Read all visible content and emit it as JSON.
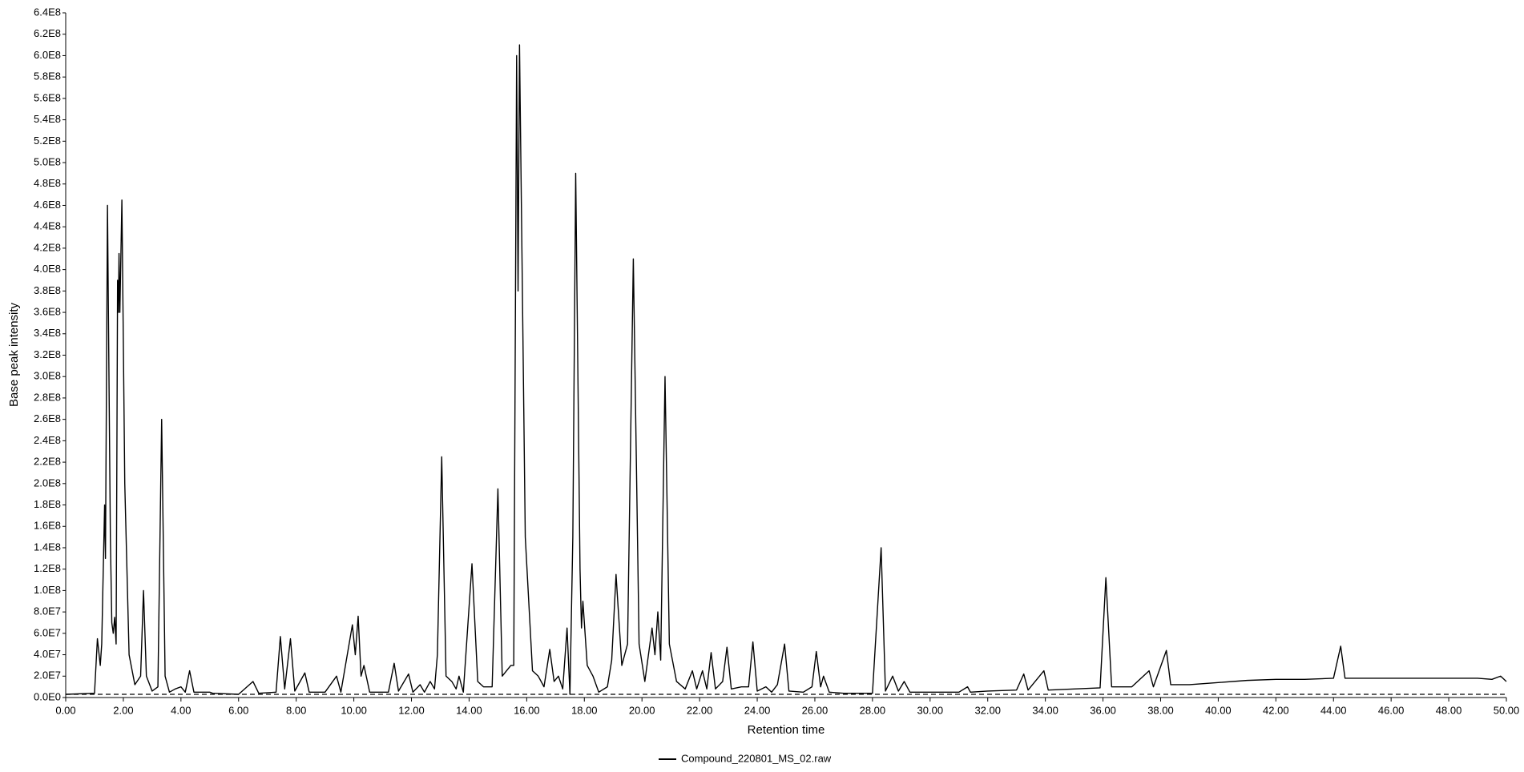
{
  "chart_data": {
    "type": "line",
    "xlabel": "Retention time",
    "ylabel": "Base peak intensity",
    "series": [
      {
        "name": "Compound_220801_MS_02.raw",
        "color": "#000000",
        "x": [
          0,
          1.0,
          1.1,
          1.2,
          1.25,
          1.35,
          1.38,
          1.45,
          1.55,
          1.6,
          1.65,
          1.7,
          1.75,
          1.8,
          1.83,
          1.85,
          1.88,
          1.95,
          2.05,
          2.2,
          2.4,
          2.6,
          2.7,
          2.8,
          3.0,
          3.2,
          3.33,
          3.45,
          3.6,
          3.8,
          4.0,
          4.15,
          4.3,
          4.45,
          5.0,
          5.1,
          6.0,
          6.5,
          6.7,
          7.3,
          7.45,
          7.6,
          7.8,
          7.95,
          8.3,
          8.45,
          9.0,
          9.4,
          9.55,
          9.95,
          10.05,
          10.15,
          10.25,
          10.35,
          10.55,
          11.2,
          11.4,
          11.55,
          11.9,
          12.05,
          12.3,
          12.45,
          12.65,
          12.8,
          12.9,
          13.05,
          13.2,
          13.4,
          13.55,
          13.65,
          13.8,
          14.1,
          14.3,
          14.5,
          14.8,
          15.0,
          15.15,
          15.3,
          15.45,
          15.55,
          15.65,
          15.7,
          15.75,
          15.95,
          16.2,
          16.4,
          16.6,
          16.8,
          16.95,
          17.1,
          17.25,
          17.4,
          17.5,
          17.6,
          17.7,
          17.85,
          17.9,
          17.95,
          18.1,
          18.3,
          18.5,
          18.8,
          18.95,
          19.1,
          19.3,
          19.5,
          19.7,
          19.9,
          20.1,
          20.35,
          20.45,
          20.55,
          20.65,
          20.8,
          20.95,
          21.2,
          21.5,
          21.75,
          21.9,
          22.1,
          22.25,
          22.4,
          22.55,
          22.8,
          22.95,
          23.1,
          23.45,
          23.7,
          23.85,
          24.0,
          24.3,
          24.5,
          24.7,
          24.95,
          25.1,
          25.6,
          25.9,
          26.05,
          26.2,
          26.3,
          26.5,
          27.0,
          28.0,
          28.3,
          28.45,
          28.7,
          28.9,
          29.1,
          29.3,
          30.0,
          31.0,
          31.3,
          31.4,
          32.0,
          33.0,
          33.25,
          33.4,
          33.95,
          34.1,
          35.0,
          35.9,
          36.1,
          36.3,
          37.0,
          37.6,
          37.75,
          38.2,
          38.35,
          39.0,
          40.0,
          41.0,
          42.0,
          43.0,
          44.0,
          44.25,
          44.4,
          45.0,
          46.0,
          47.0,
          48.0,
          49.0,
          49.5,
          49.8,
          50.0
        ],
        "values": [
          3000000.0,
          4000000.0,
          55000000.0,
          30000000.0,
          50000000.0,
          180000000.0,
          130000000.0,
          460000000.0,
          150000000.0,
          70000000.0,
          60000000.0,
          75000000.0,
          50000000.0,
          390000000.0,
          360000000.0,
          415000000.0,
          360000000.0,
          465000000.0,
          200000000.0,
          40000000.0,
          12000000.0,
          20000000.0,
          100000000.0,
          20000000.0,
          6000000.0,
          10000000.0,
          260000000.0,
          20000000.0,
          5000000.0,
          8000000.0,
          10000000.0,
          5000000.0,
          25000000.0,
          5000000.0,
          5000000.0,
          4000000.0,
          3000000.0,
          15000000.0,
          4000000.0,
          5000000.0,
          57000000.0,
          8000000.0,
          55000000.0,
          6000000.0,
          23000000.0,
          5000000.0,
          5000000.0,
          20000000.0,
          5000000.0,
          68000000.0,
          40000000.0,
          76000000.0,
          20000000.0,
          30000000.0,
          5000000.0,
          5000000.0,
          32000000.0,
          6000000.0,
          22000000.0,
          5000000.0,
          12000000.0,
          5000000.0,
          15000000.0,
          8000000.0,
          40000000.0,
          225000000.0,
          20000000.0,
          15000000.0,
          8000000.0,
          20000000.0,
          5000000.0,
          125000000.0,
          15000000.0,
          10000000.0,
          10000000.0,
          195000000.0,
          20000000.0,
          25000000.0,
          30000000.0,
          30000000.0,
          600000000.0,
          380000000.0,
          610000000.0,
          150000000.0,
          25000000.0,
          20000000.0,
          10000000.0,
          45000000.0,
          15000000.0,
          20000000.0,
          8000000.0,
          65000000.0,
          3000000.0,
          150000000.0,
          490000000.0,
          120000000.0,
          65000000.0,
          90000000.0,
          30000000.0,
          20000000.0,
          5000000.0,
          10000000.0,
          35000000.0,
          115000000.0,
          30000000.0,
          50000000.0,
          410000000.0,
          50000000.0,
          15000000.0,
          65000000.0,
          40000000.0,
          80000000.0,
          35000000.0,
          300000000.0,
          50000000.0,
          15000000.0,
          8000000.0,
          25000000.0,
          8000000.0,
          25000000.0,
          8000000.0,
          42000000.0,
          8000000.0,
          15000000.0,
          47000000.0,
          8000000.0,
          10000000.0,
          10000000.0,
          52000000.0,
          6000000.0,
          10000000.0,
          5000000.0,
          12000000.0,
          50000000.0,
          6000000.0,
          5000000.0,
          10000000.0,
          43000000.0,
          10000000.0,
          20000000.0,
          5000000.0,
          4000000.0,
          4000000.0,
          140000000.0,
          6000000.0,
          20000000.0,
          6000000.0,
          15000000.0,
          5000000.0,
          5000000.0,
          5000000.0,
          10000000.0,
          5000000.0,
          6000000.0,
          7000000.0,
          22000000.0,
          7000000.0,
          25000000.0,
          7000000.0,
          8000000.0,
          9000000.0,
          112000000.0,
          10000000.0,
          10000000.0,
          25000000.0,
          10000000.0,
          44000000.0,
          12000000.0,
          12000000.0,
          14000000.0,
          16000000.0,
          17000000.0,
          17000000.0,
          18000000.0,
          48000000.0,
          18000000.0,
          18000000.0,
          18000000.0,
          18000000.0,
          18000000.0,
          18000000.0,
          17000000.0,
          20000000.0,
          15000000.0
        ]
      }
    ],
    "threshold": 3000000,
    "xlim": [
      0,
      50
    ],
    "xticks": [
      {
        "value": 0,
        "label": "0.00"
      },
      {
        "value": 2,
        "label": "2.00"
      },
      {
        "value": 4,
        "label": "4.00"
      },
      {
        "value": 6,
        "label": "6.00"
      },
      {
        "value": 8,
        "label": "8.00"
      },
      {
        "value": 10,
        "label": "10.00"
      },
      {
        "value": 12,
        "label": "12.00"
      },
      {
        "value": 14,
        "label": "14.00"
      },
      {
        "value": 16,
        "label": "16.00"
      },
      {
        "value": 18,
        "label": "18.00"
      },
      {
        "value": 20,
        "label": "20.00"
      },
      {
        "value": 22,
        "label": "22.00"
      },
      {
        "value": 24,
        "label": "24.00"
      },
      {
        "value": 26,
        "label": "26.00"
      },
      {
        "value": 28,
        "label": "28.00"
      },
      {
        "value": 30,
        "label": "30.00"
      },
      {
        "value": 32,
        "label": "32.00"
      },
      {
        "value": 34,
        "label": "34.00"
      },
      {
        "value": 36,
        "label": "36.00"
      },
      {
        "value": 38,
        "label": "38.00"
      },
      {
        "value": 40,
        "label": "40.00"
      },
      {
        "value": 42,
        "label": "42.00"
      },
      {
        "value": 44,
        "label": "44.00"
      },
      {
        "value": 46,
        "label": "46.00"
      },
      {
        "value": 48,
        "label": "48.00"
      },
      {
        "value": 50,
        "label": "50.00"
      }
    ],
    "ylim": [
      0,
      640000000
    ],
    "yticks": [
      {
        "value": 0,
        "label": "0.0E0"
      },
      {
        "value": 20000000,
        "label": "2.0E7"
      },
      {
        "value": 40000000,
        "label": "4.0E7"
      },
      {
        "value": 60000000,
        "label": "6.0E7"
      },
      {
        "value": 80000000,
        "label": "8.0E7"
      },
      {
        "value": 100000000,
        "label": "1.0E8"
      },
      {
        "value": 120000000,
        "label": "1.2E8"
      },
      {
        "value": 140000000,
        "label": "1.4E8"
      },
      {
        "value": 160000000,
        "label": "1.6E8"
      },
      {
        "value": 180000000,
        "label": "1.8E8"
      },
      {
        "value": 200000000,
        "label": "2.0E8"
      },
      {
        "value": 220000000,
        "label": "2.2E8"
      },
      {
        "value": 240000000,
        "label": "2.4E8"
      },
      {
        "value": 260000000,
        "label": "2.6E8"
      },
      {
        "value": 280000000,
        "label": "2.8E8"
      },
      {
        "value": 300000000,
        "label": "3.0E8"
      },
      {
        "value": 320000000,
        "label": "3.2E8"
      },
      {
        "value": 340000000,
        "label": "3.4E8"
      },
      {
        "value": 360000000,
        "label": "3.6E8"
      },
      {
        "value": 380000000,
        "label": "3.8E8"
      },
      {
        "value": 400000000,
        "label": "4.0E8"
      },
      {
        "value": 420000000,
        "label": "4.2E8"
      },
      {
        "value": 440000000,
        "label": "4.4E8"
      },
      {
        "value": 460000000,
        "label": "4.6E8"
      },
      {
        "value": 480000000,
        "label": "4.8E8"
      },
      {
        "value": 500000000,
        "label": "5.0E8"
      },
      {
        "value": 520000000,
        "label": "5.2E8"
      },
      {
        "value": 540000000,
        "label": "5.4E8"
      },
      {
        "value": 560000000,
        "label": "5.6E8"
      },
      {
        "value": 580000000,
        "label": "5.8E8"
      },
      {
        "value": 600000000,
        "label": "6.0E8"
      },
      {
        "value": 620000000,
        "label": "6.2E8"
      },
      {
        "value": 640000000,
        "label": "6.4E8"
      }
    ],
    "grid": false
  }
}
